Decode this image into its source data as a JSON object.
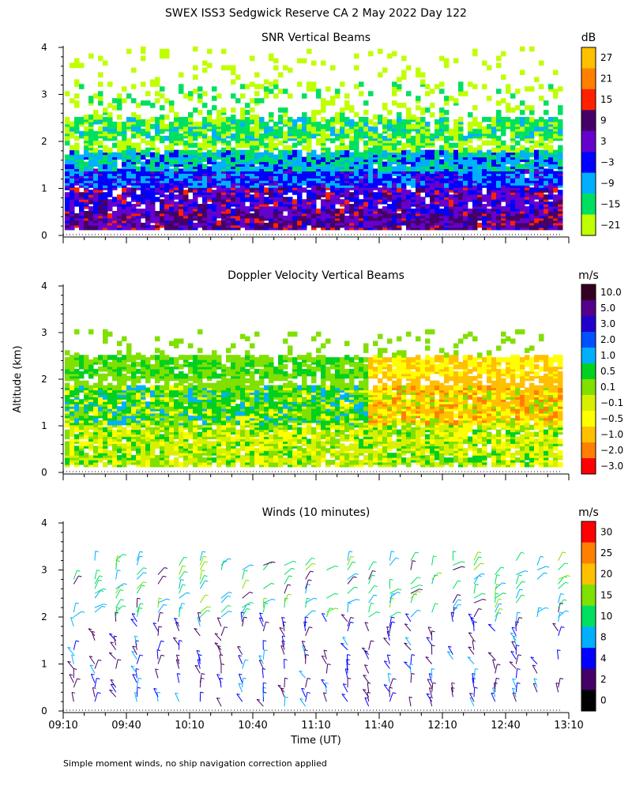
{
  "figure": {
    "title": "SWEX ISS3 Sedgwick Reserve CA   2 May 2022 Day 122",
    "ylabel": "Altitude (km)",
    "xlabel": "Time (UT)",
    "x_ticks": [
      "09:10",
      "09:40",
      "10:10",
      "10:40",
      "11:10",
      "11:40",
      "12:10",
      "12:40",
      "13:10"
    ],
    "y_ticks": [
      "0",
      "1",
      "2",
      "3",
      "4"
    ],
    "footnote": "Simple moment winds, no ship navigation correction applied"
  },
  "chart_data": [
    {
      "type": "heatmap",
      "title": "SNR Vertical Beams",
      "unit": "dB",
      "xlim": [
        "09:10",
        "13:10"
      ],
      "ylim": [
        0,
        4
      ],
      "colorbar": {
        "labels": [
          "27",
          "21",
          "15",
          "9",
          "3",
          "−3",
          "−9",
          "−15",
          "−21"
        ],
        "colors": [
          "#ffc000",
          "#ff8000",
          "#ff2000",
          "#440066",
          "#6600cc",
          "#0000ff",
          "#00b0ff",
          "#00e060",
          "#c0ff00"
        ]
      }
    },
    {
      "type": "heatmap",
      "title": "Doppler Velocity Vertical Beams",
      "unit": "m/s",
      "xlim": [
        "09:10",
        "13:10"
      ],
      "ylim": [
        0,
        4
      ],
      "colorbar": {
        "labels": [
          "10.0",
          "5.0",
          "3.0",
          "2.0",
          "1.0",
          "0.5",
          "0.1",
          "−0.1",
          "−0.5",
          "−1.0",
          "−2.0",
          "−3.0"
        ],
        "colors": [
          "#330022",
          "#55008a",
          "#2200cc",
          "#0050ff",
          "#00b0ff",
          "#00d020",
          "#80e000",
          "#d8f000",
          "#ffff00",
          "#ffc000",
          "#ff8000",
          "#ff0000"
        ]
      }
    },
    {
      "type": "scatter",
      "title": "Winds (10 minutes)",
      "unit": "m/s",
      "xlim": [
        "09:10",
        "13:10"
      ],
      "ylim": [
        0,
        4
      ],
      "colorbar": {
        "labels": [
          "30",
          "25",
          "20",
          "15",
          "10",
          "8",
          "4",
          "2",
          "0"
        ],
        "colors": [
          "#ff0000",
          "#ff8000",
          "#ffc000",
          "#80e000",
          "#00e060",
          "#00b0ff",
          "#0000ff",
          "#440066",
          "#000000"
        ]
      }
    }
  ]
}
